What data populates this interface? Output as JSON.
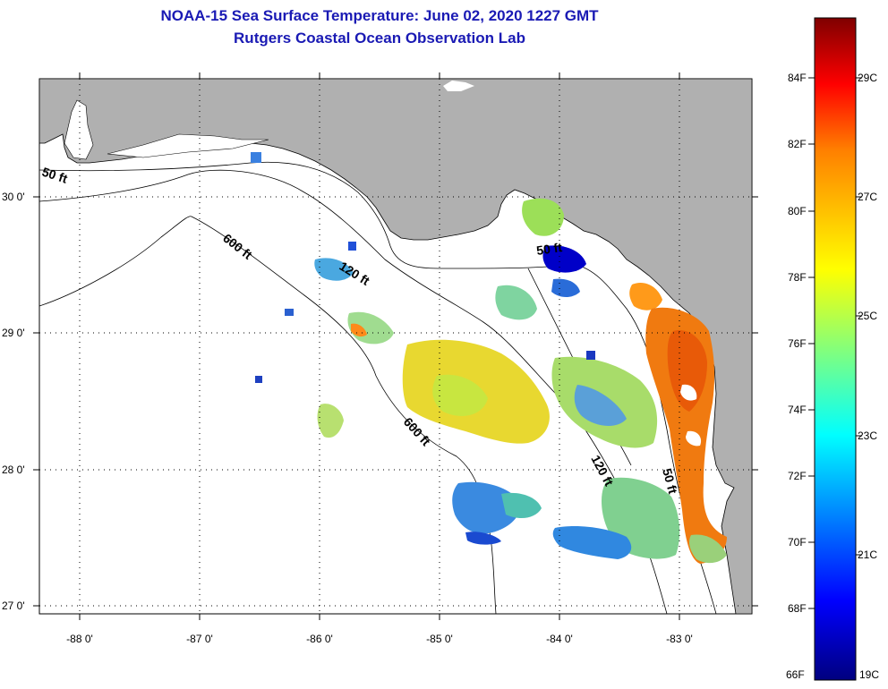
{
  "header": {
    "title": "NOAA-15 Sea Surface Temperature:  June 02, 2020 1227 GMT",
    "subtitle": "Rutgers Coastal Ocean Observation Lab"
  },
  "map": {
    "lat_labels": [
      "30 0'",
      "29 0'",
      "28 0'",
      "27 0'"
    ],
    "lon_labels": [
      "-88 0'",
      "-87 0'",
      "-86 0'",
      "-85 0'",
      "-84 0'",
      "-83 0'"
    ],
    "contours": [
      "50 ft",
      "600 ft",
      "120 ft",
      "600 ft",
      "50 ft",
      "120 ft",
      "50 ft"
    ],
    "colors": {
      "land": "#b0b0b0",
      "ocean": "#ffffff"
    }
  },
  "colorbar": {
    "f_labels": [
      "84F",
      "82F",
      "80F",
      "78F",
      "76F",
      "74F",
      "72F",
      "70F",
      "68F",
      "66F"
    ],
    "c_labels": [
      "29C",
      "27C",
      "25C",
      "23C",
      "21C",
      "19C"
    ],
    "colors": [
      "#00007f",
      "#0000ff",
      "#00ffff",
      "#ffff00",
      "#ff8000",
      "#ff0000",
      "#7f0000"
    ]
  }
}
